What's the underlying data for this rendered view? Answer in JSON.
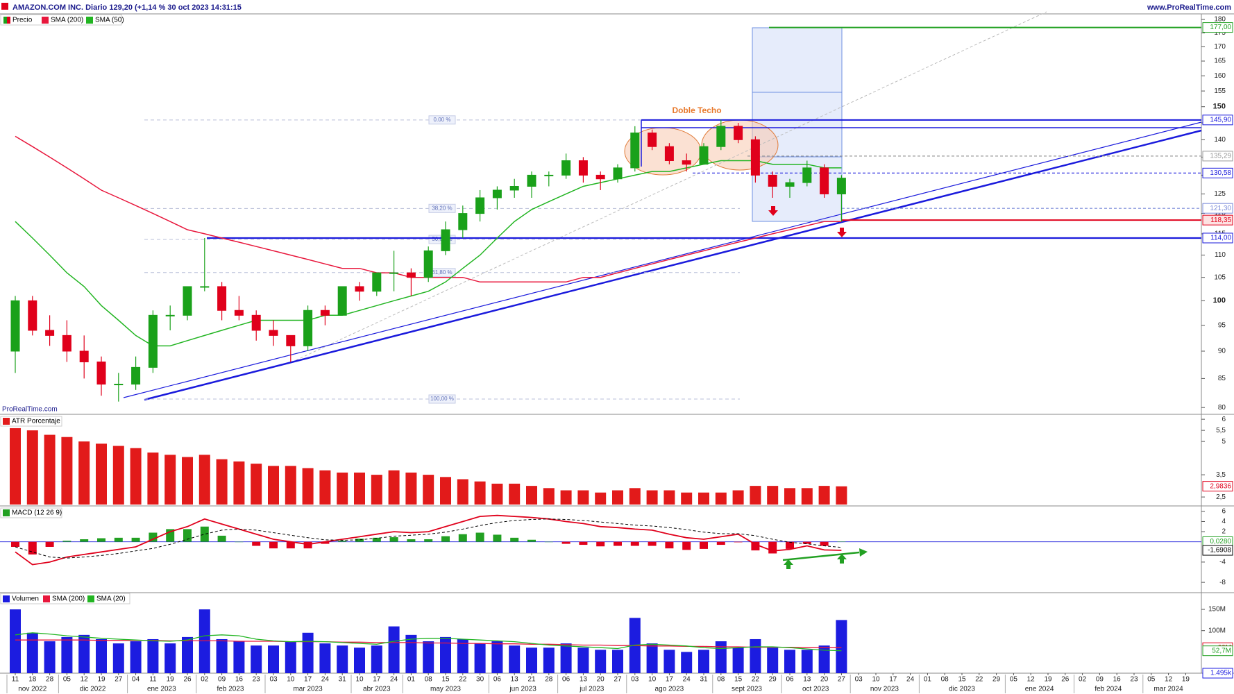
{
  "header": {
    "site": "www.ProRealTime.com",
    "watermark": "ProRealTime.com"
  },
  "x_axis": {
    "days": [
      "11",
      "18",
      "28",
      "05",
      "12",
      "19",
      "27",
      "04",
      "11",
      "19",
      "26",
      "02",
      "09",
      "16",
      "23",
      "03",
      "10",
      "17",
      "24",
      "31",
      "10",
      "17",
      "24",
      "01",
      "08",
      "15",
      "22",
      "30",
      "06",
      "13",
      "21",
      "28",
      "06",
      "13",
      "20",
      "27",
      "03",
      "10",
      "17",
      "24",
      "31",
      "08",
      "15",
      "22",
      "29",
      "06",
      "13",
      "20",
      "27",
      "03",
      "10",
      "17",
      "24",
      "01",
      "08",
      "15",
      "22",
      "29",
      "05",
      "12",
      "19",
      "26",
      "02",
      "09",
      "16",
      "23",
      "05",
      "12",
      "19"
    ],
    "months": [
      "nov 2022",
      "dic 2022",
      "ene 2023",
      "feb 2023",
      "mar 2023",
      "abr 2023",
      "may 2023",
      "jun 2023",
      "jul 2023",
      "ago 2023",
      "sept 2023",
      "oct 2023",
      "nov 2023",
      "dic 2023",
      "ene 2024",
      "feb 2024",
      "mar 2024"
    ]
  },
  "chart_data": [
    {
      "type": "candlestick",
      "title": "AMAZON.COM INC. Diario 129,20 (+1,14 % 30 oct 2023 14:31:15",
      "log": true,
      "ylim": [
        79.1,
        182.1
      ],
      "yticks": [
        80,
        85,
        90,
        95,
        100,
        105,
        110,
        115,
        120,
        125,
        130,
        135,
        140,
        145,
        150,
        155,
        160,
        165,
        170,
        175,
        180
      ],
      "annotation": "Doble Techo",
      "series": [
        {
          "name": "Precio",
          "up_color": "#1aa11a",
          "down_color": "#e0001b",
          "open": [
            90,
            100,
            94,
            93,
            90,
            88,
            84,
            84,
            87,
            97,
            97,
            103,
            103,
            98,
            97,
            94,
            93,
            91,
            98,
            97,
            103,
            102,
            106,
            106,
            105,
            111,
            116,
            120,
            124,
            126,
            127,
            130,
            130,
            134,
            130,
            129,
            132,
            142,
            138,
            134,
            133,
            138,
            144,
            140,
            130,
            127,
            128,
            132,
            125
          ],
          "high": [
            101,
            101,
            97,
            96,
            93,
            89,
            86,
            89,
            98,
            99,
            103,
            114,
            104,
            101,
            98,
            96,
            93,
            99,
            99,
            103,
            104,
            106,
            111,
            107,
            112,
            118,
            122,
            126,
            127,
            129,
            131,
            131,
            136,
            135,
            131,
            133,
            144,
            143,
            139,
            136,
            139,
            146,
            145,
            141,
            131,
            129,
            134,
            133,
            130
          ],
          "low": [
            86,
            93,
            91,
            88,
            85,
            82,
            81,
            83,
            86,
            94,
            96,
            102,
            96,
            96,
            92,
            91,
            88,
            90,
            95,
            97,
            100,
            101,
            102,
            101,
            104,
            110,
            114,
            118,
            121,
            124,
            124,
            127,
            129,
            128,
            126,
            128,
            131,
            137,
            133,
            131,
            133,
            137,
            139,
            128,
            124,
            124,
            127,
            124,
            118
          ],
          "close": [
            100,
            94,
            93,
            90,
            88,
            84,
            84,
            87,
            97,
            97,
            103,
            103,
            98,
            97,
            94,
            93,
            91,
            98,
            97,
            103,
            102,
            106,
            106,
            105,
            111,
            116,
            120,
            124,
            126,
            127,
            130,
            130,
            134,
            130,
            129,
            132,
            142,
            138,
            134,
            133,
            138,
            144,
            140,
            130,
            127,
            128,
            132,
            125,
            129.2
          ]
        },
        {
          "name": "SMA (200)",
          "color": "#e8173c",
          "values": [
            141,
            138,
            135,
            132,
            129,
            126,
            124,
            122,
            120,
            118,
            116,
            115,
            114,
            113,
            112,
            111,
            110,
            109,
            108,
            107,
            107,
            106,
            106,
            105,
            105,
            105,
            105,
            104,
            104,
            104,
            104,
            104,
            104,
            105,
            105,
            106,
            107,
            108,
            109,
            110,
            111,
            112,
            113,
            114,
            115,
            116,
            117,
            118,
            118
          ]
        },
        {
          "name": "SMA (50)",
          "color": "#22b522",
          "values": [
            118,
            114,
            110,
            106,
            103,
            99,
            96,
            93,
            91,
            91,
            92,
            93,
            94,
            95,
            96,
            96,
            96,
            96,
            97,
            97,
            98,
            99,
            100,
            101,
            102,
            104,
            107,
            110,
            114,
            118,
            121,
            123,
            125,
            127,
            128,
            129,
            130,
            131,
            131,
            132,
            133,
            134,
            134,
            134,
            133,
            133,
            133,
            132,
            132
          ]
        }
      ],
      "levels": [
        {
          "value": 177,
          "label": "177,00",
          "color": "#22a022"
        },
        {
          "value": 145.9,
          "label": "145,90",
          "color": "#1a1adc"
        },
        {
          "value": 135.29,
          "label": "135,29",
          "color": "#999999"
        },
        {
          "value": 130.58,
          "label": "130,58",
          "color": "#1a1adc"
        },
        {
          "value": 121.3,
          "label": "121,30",
          "color": "#7a8ad8"
        },
        {
          "value": 118.35,
          "label": "118,35",
          "color": "#e0001b"
        },
        {
          "value": 114,
          "label": "114,00",
          "color": "#1a1adc"
        }
      ],
      "fibonacci": {
        "high": 145.9,
        "low": 81.43,
        "levels": [
          {
            "value": 0,
            "label": "0.00 %"
          },
          {
            "value": 38.2,
            "label": "38,20 %"
          },
          {
            "value": 50,
            "label": "50,00 %"
          },
          {
            "value": 61.8,
            "label": "61,80 %"
          },
          {
            "value": 100,
            "label": "100,00 %"
          }
        ]
      }
    },
    {
      "type": "bar",
      "title": "ATR Porcentaje",
      "color": "#e21a1a",
      "ylim": [
        2.16,
        6.16
      ],
      "yticks": [
        {
          "value": 2.5,
          "label": "2,5"
        },
        {
          "value": 3.5,
          "label": "3,5"
        },
        5,
        {
          "value": 5.5,
          "label": "5,5"
        },
        6
      ],
      "values": [
        5.6,
        5.5,
        5.3,
        5.2,
        5.0,
        4.9,
        4.8,
        4.7,
        4.5,
        4.4,
        4.3,
        4.4,
        4.2,
        4.1,
        4.0,
        3.9,
        3.9,
        3.8,
        3.7,
        3.6,
        3.6,
        3.5,
        3.7,
        3.6,
        3.5,
        3.4,
        3.3,
        3.2,
        3.1,
        3.1,
        3.0,
        2.9,
        2.8,
        2.8,
        2.7,
        2.8,
        2.9,
        2.8,
        2.8,
        2.7,
        2.7,
        2.7,
        2.8,
        3.0,
        3.0,
        2.9,
        2.9,
        3.0,
        2.98
      ],
      "value_boxes": [
        {
          "value": 2.9836,
          "label": "2,9836",
          "color": "#e0001b"
        }
      ]
    },
    {
      "type": "macd",
      "title": "MACD (12 26 9)",
      "ylim": [
        -9.9,
        6.8
      ],
      "yticks": [
        6,
        4,
        2,
        -4,
        -8
      ],
      "series": [
        {
          "kind": "histogram",
          "color": "#22a022",
          "negative_color": "#e0001b",
          "values": [
            -1,
            -2.5,
            -1,
            0.2,
            0.5,
            0.7,
            0.8,
            0.8,
            1.8,
            2.5,
            2.5,
            3,
            1.2,
            0,
            -0.8,
            -1.3,
            -1.3,
            -1.3,
            -0.4,
            0.2,
            0.6,
            0.8,
            0.9,
            0.5,
            0.5,
            1.1,
            1.5,
            1.8,
            1.4,
            0.8,
            0.4,
            0,
            -0.4,
            -0.6,
            -0.9,
            -0.8,
            -0.8,
            -0.8,
            -1.3,
            -1.6,
            -1.4,
            -0.6,
            -0.1,
            -1.7,
            -2.3,
            -1.4,
            -0.4,
            -0.8,
            0.028
          ]
        },
        {
          "kind": "line",
          "color": "#e0001b",
          "values": [
            -2,
            -4.5,
            -4,
            -3,
            -2.5,
            -2,
            -1.5,
            -1,
            0.5,
            2,
            3,
            4.5,
            3.5,
            2.5,
            1.5,
            0.5,
            0,
            -0.5,
            0,
            0.5,
            1,
            1.5,
            2,
            1.8,
            2,
            3,
            4,
            5,
            5.2,
            5,
            4.8,
            4.5,
            4,
            3.6,
            3,
            2.8,
            2.5,
            2.3,
            1.5,
            0.8,
            0.5,
            1,
            1.5,
            -0.5,
            -1.8,
            -1.5,
            -0.8,
            -1.6,
            -1.6908
          ]
        },
        {
          "kind": "line",
          "color": "#000000",
          "dash": true,
          "values": [
            -1,
            -2,
            -3,
            -3.2,
            -3,
            -2.7,
            -2.3,
            -1.8,
            -1.3,
            -0.5,
            0.5,
            1.5,
            2.3,
            2.5,
            2.3,
            1.8,
            1.3,
            0.8,
            0.4,
            0.3,
            0.4,
            0.7,
            1.1,
            1.3,
            1.5,
            1.9,
            2.5,
            3.2,
            3.8,
            4.2,
            4.4,
            4.5,
            4.4,
            4.2,
            3.9,
            3.6,
            3.3,
            3.1,
            2.8,
            2.4,
            1.9,
            1.6,
            1.6,
            1.2,
            0.5,
            -0.1,
            -0.4,
            -0.8,
            -1.1
          ]
        }
      ],
      "value_boxes": [
        {
          "value": 0.028,
          "label": "0,0280",
          "color": "#22a022"
        },
        {
          "value": -1.6908,
          "label": "-1,6908",
          "color": "#000000"
        }
      ]
    },
    {
      "type": "bar",
      "ylim": [
        0,
        186000000
      ],
      "yticks": [
        {
          "value": 100000000,
          "label": "100M"
        },
        {
          "value": 150000000,
          "label": "150M"
        }
      ],
      "series": [
        {
          "name": "Volumen",
          "color": "#1c1ce0",
          "values": [
            150000000,
            95000000,
            75000000,
            85000000,
            90000000,
            80000000,
            70000000,
            75000000,
            80000000,
            70000000,
            85000000,
            150000000,
            80000000,
            75000000,
            65000000,
            65000000,
            75000000,
            95000000,
            70000000,
            65000000,
            60000000,
            65000000,
            110000000,
            90000000,
            75000000,
            85000000,
            80000000,
            70000000,
            75000000,
            65000000,
            60000000,
            60000000,
            70000000,
            60000000,
            55000000,
            55000000,
            130000000,
            70000000,
            55000000,
            50000000,
            55000000,
            75000000,
            60000000,
            80000000,
            60000000,
            55000000,
            55000000,
            65000000,
            125000000
          ]
        },
        {
          "name": "SMA (200)",
          "color": "#e8173c",
          "values": [
            78000000,
            78000000,
            78000000,
            78000000,
            78000000,
            77000000,
            77000000,
            77000000,
            77000000,
            76000000,
            76000000,
            76000000,
            76000000,
            75000000,
            75000000,
            75000000,
            74000000,
            74000000,
            74000000,
            73000000,
            73000000,
            72000000,
            72000000,
            72000000,
            71000000,
            71000000,
            70000000,
            70000000,
            69000000,
            69000000,
            68000000,
            68000000,
            67000000,
            66000000,
            66000000,
            65000000,
            65000000,
            64000000,
            64000000,
            63000000,
            63000000,
            62000000,
            62000000,
            61000000,
            61000000,
            61000000,
            60000000,
            60000000,
            60000000
          ]
        },
        {
          "name": "SMA (20)",
          "color": "#22b522",
          "values": [
            90000000,
            95000000,
            92000000,
            88000000,
            85000000,
            82000000,
            80000000,
            78000000,
            76000000,
            75000000,
            78000000,
            88000000,
            90000000,
            88000000,
            80000000,
            76000000,
            74000000,
            75000000,
            74000000,
            72000000,
            70000000,
            68000000,
            75000000,
            80000000,
            82000000,
            82000000,
            80000000,
            78000000,
            76000000,
            74000000,
            70000000,
            66000000,
            64000000,
            62000000,
            60000000,
            58000000,
            66000000,
            68000000,
            66000000,
            64000000,
            60000000,
            58000000,
            60000000,
            62000000,
            62000000,
            60000000,
            57000000,
            54000000,
            52700000
          ]
        }
      ],
      "value_boxes": [
        {
          "value": 60000000,
          "label": "60M",
          "color": "#e0001b"
        },
        {
          "value": 52700000,
          "label": "52,7M",
          "color": "#22a022"
        },
        {
          "value": 1495,
          "label": "1.495k",
          "color": "#1c1ce0"
        }
      ]
    }
  ]
}
